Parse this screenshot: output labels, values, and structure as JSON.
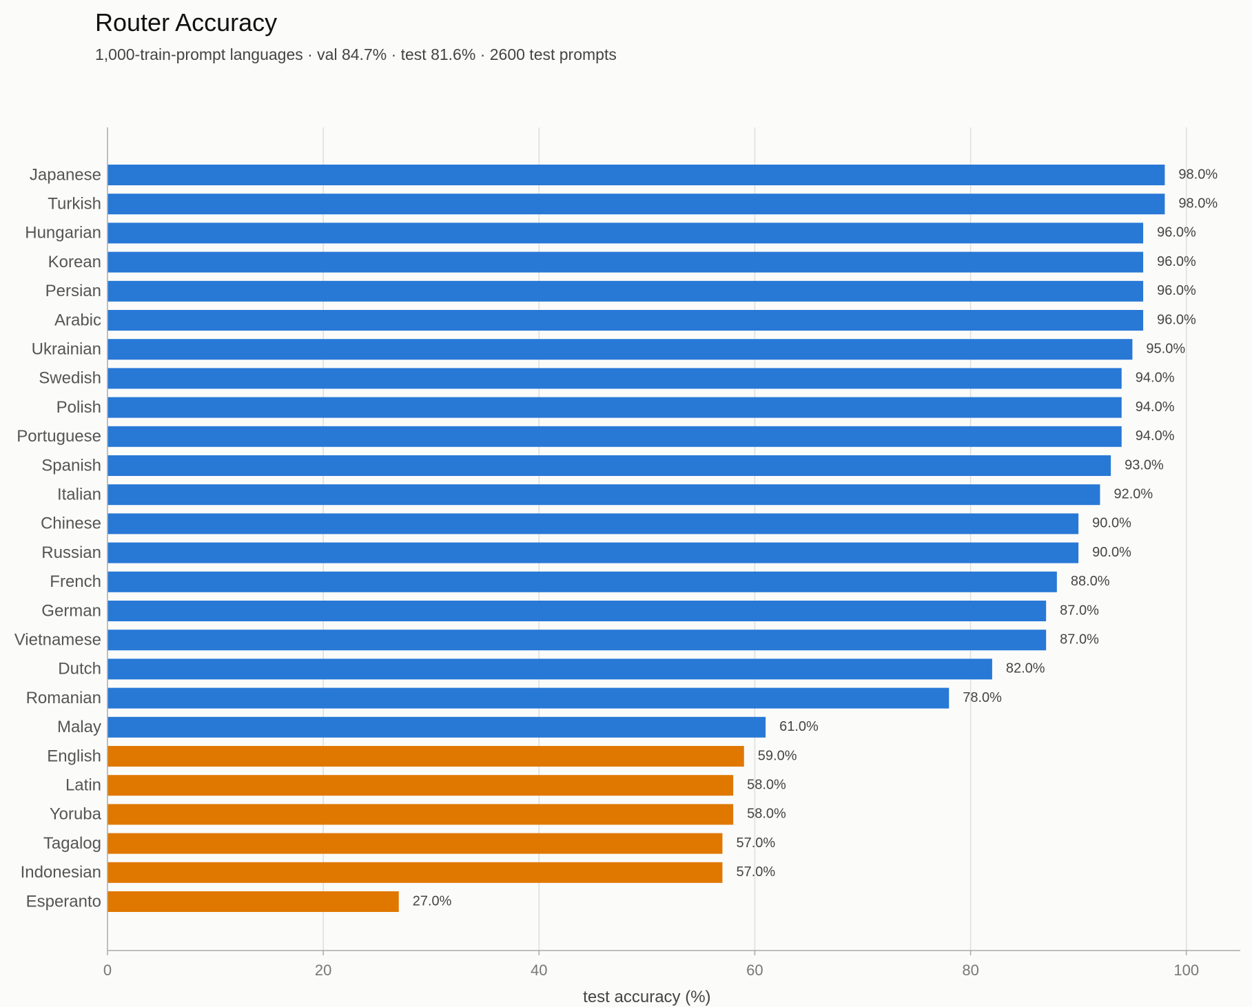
{
  "chart_data": {
    "type": "bar",
    "orientation": "horizontal",
    "title": "Router Accuracy",
    "subtitle": "1,000-train-prompt languages · val 84.7% · test 81.6% · 2600 test prompts",
    "xlabel": "test accuracy (%)",
    "ylabel": "",
    "xlim": [
      0,
      105
    ],
    "xticks": [
      0,
      20,
      40,
      60,
      80,
      100
    ],
    "grid": "vertical",
    "categories": [
      "Japanese",
      "Turkish",
      "Hungarian",
      "Korean",
      "Persian",
      "Arabic",
      "Ukrainian",
      "Swedish",
      "Polish",
      "Portuguese",
      "Spanish",
      "Italian",
      "Chinese",
      "Russian",
      "French",
      "German",
      "Vietnamese",
      "Dutch",
      "Romanian",
      "Malay",
      "English",
      "Latin",
      "Yoruba",
      "Tagalog",
      "Indonesian",
      "Esperanto"
    ],
    "values": [
      98,
      98,
      96,
      96,
      96,
      96,
      95,
      94,
      94,
      94,
      93,
      92,
      90,
      90,
      88,
      87,
      87,
      82,
      78,
      61,
      59,
      58,
      58,
      57,
      57,
      27
    ],
    "value_labels": [
      "98.0%",
      "98.0%",
      "96.0%",
      "96.0%",
      "96.0%",
      "96.0%",
      "95.0%",
      "94.0%",
      "94.0%",
      "94.0%",
      "93.0%",
      "92.0%",
      "90.0%",
      "90.0%",
      "88.0%",
      "87.0%",
      "87.0%",
      "82.0%",
      "78.0%",
      "61.0%",
      "59.0%",
      "58.0%",
      "58.0%",
      "57.0%",
      "57.0%",
      "27.0%"
    ],
    "bar_groups": [
      "blue",
      "blue",
      "blue",
      "blue",
      "blue",
      "blue",
      "blue",
      "blue",
      "blue",
      "blue",
      "blue",
      "blue",
      "blue",
      "blue",
      "blue",
      "blue",
      "blue",
      "blue",
      "blue",
      "blue",
      "orange",
      "orange",
      "orange",
      "orange",
      "orange",
      "orange"
    ],
    "colors": {
      "blue": "#2878d6",
      "orange": "#e07800",
      "grid": "#dddddd",
      "axis": "#aaaaaa"
    }
  }
}
